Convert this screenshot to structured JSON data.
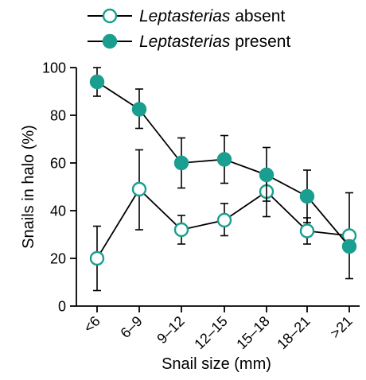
{
  "chart_data": {
    "type": "line",
    "title": "",
    "xlabel": "Snail size (mm)",
    "ylabel": "Snails in halo (%)",
    "ylim": [
      0,
      100
    ],
    "yticks": [
      0,
      20,
      40,
      60,
      80,
      100
    ],
    "categories": [
      "<6",
      "6–9",
      "9–12",
      "12–15",
      "15–18",
      "18–21",
      ">21"
    ],
    "legend_position": "top",
    "grid": false,
    "series": [
      {
        "name_prefix": "Leptasterias",
        "name_suffix": " absent",
        "marker": "open-circle",
        "color": "#1a9e8f",
        "values": [
          20,
          49,
          32,
          36,
          48,
          31.5,
          29.5
        ],
        "error_upper": [
          33.5,
          65.5,
          38,
          43,
          54,
          37,
          47.5
        ],
        "error_lower": [
          6.5,
          32,
          26,
          29.5,
          37.5,
          26,
          11.5
        ]
      },
      {
        "name_prefix": "Leptasterias",
        "name_suffix": " present",
        "marker": "filled-circle",
        "color": "#1a9e8f",
        "values": [
          94,
          82.5,
          60,
          61.5,
          55,
          46,
          25
        ],
        "error_upper": [
          100,
          91,
          70.5,
          71.5,
          66.5,
          57,
          25
        ],
        "error_lower": [
          88,
          74.5,
          49.5,
          51.5,
          44,
          35,
          25
        ]
      }
    ]
  }
}
